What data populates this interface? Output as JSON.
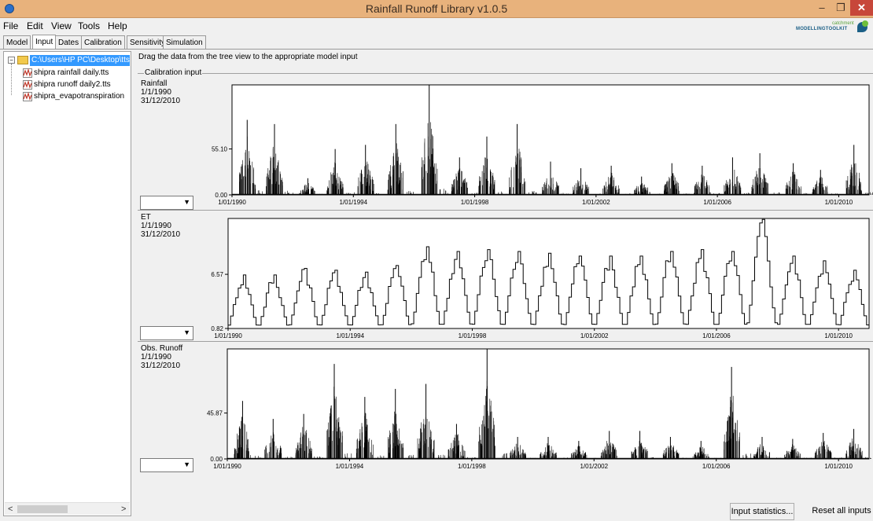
{
  "window": {
    "title": "Rainfall Runoff Library v1.0.5",
    "minimize": "–",
    "maximize": "❐",
    "close": "✕"
  },
  "menu": [
    "File",
    "Edit",
    "View",
    "Tools",
    "Help"
  ],
  "logo": {
    "main": "MODELLINGTOOLKIT",
    "sub": "catchment"
  },
  "tabs": [
    "Model",
    "Input",
    "Dates",
    "Calibration",
    "Sensitivity",
    "Simulation"
  ],
  "active_tab": "Input",
  "tree": {
    "root": "C:\\Users\\HP PC\\Desktop\\tts",
    "toggle": "−",
    "items": [
      "shipra rainfall daily.tts",
      "shipra runoff daily2.tts",
      "shipra_evapotranspiration"
    ]
  },
  "scroll": {
    "left": "<",
    "right": ">"
  },
  "instructions": "Drag the data from the tree view to the appropriate model input",
  "group_label": "Calibration input",
  "combo_caret": "▼",
  "panels": [
    {
      "name": "Rainfall",
      "start": "1/1/1990",
      "end": "31/12/2010",
      "y_mid": "55.10",
      "y_min": "0.00"
    },
    {
      "name": "ET",
      "start": "1/1/1990",
      "end": "31/12/2010",
      "y_mid": "6.57",
      "y_min": "0.82"
    },
    {
      "name": "Obs. Runoff",
      "start": "1/1/1990",
      "end": "31/12/2010",
      "y_mid": "45.87",
      "y_min": "0.00"
    }
  ],
  "chart_data": [
    {
      "type": "bar",
      "title": "Rainfall",
      "x_ticks": [
        "1/01/1990",
        "1/01/1994",
        "1/01/1998",
        "1/01/2002",
        "1/01/2006",
        "1/01/2010"
      ],
      "y_ticks": [
        0.0,
        55.1
      ],
      "ylim": [
        0,
        132
      ],
      "x_range": [
        1990.0,
        2011.0
      ],
      "peaks": [
        {
          "year": 1990.5,
          "value": 90
        },
        {
          "year": 1991.4,
          "value": 85
        },
        {
          "year": 1992.5,
          "value": 20
        },
        {
          "year": 1993.4,
          "value": 55
        },
        {
          "year": 1994.4,
          "value": 60
        },
        {
          "year": 1995.4,
          "value": 85
        },
        {
          "year": 1996.5,
          "value": 132
        },
        {
          "year": 1997.5,
          "value": 45
        },
        {
          "year": 1998.4,
          "value": 70
        },
        {
          "year": 1999.4,
          "value": 85
        },
        {
          "year": 2000.5,
          "value": 40
        },
        {
          "year": 2001.5,
          "value": 32
        },
        {
          "year": 2002.5,
          "value": 35
        },
        {
          "year": 2003.5,
          "value": 22
        },
        {
          "year": 2004.5,
          "value": 38
        },
        {
          "year": 2005.5,
          "value": 35
        },
        {
          "year": 2006.5,
          "value": 45
        },
        {
          "year": 2007.4,
          "value": 50
        },
        {
          "year": 2008.5,
          "value": 38
        },
        {
          "year": 2009.4,
          "value": 30
        },
        {
          "year": 2010.5,
          "value": 60
        }
      ]
    },
    {
      "type": "line",
      "title": "ET",
      "x_ticks": [
        "1/01/1990",
        "1/01/1994",
        "1/01/1998",
        "1/01/2002",
        "1/01/2006",
        "1/01/2010"
      ],
      "y_ticks": [
        0.82,
        6.57
      ],
      "ylim": [
        0.82,
        12.5
      ],
      "x_range": [
        1990.0,
        2011.0
      ],
      "annual_peak": [
        6.5,
        6.5,
        7.2,
        7.0,
        6.8,
        7.5,
        9.5,
        9.0,
        9.2,
        9.0,
        8.8,
        8.5,
        8.5,
        8.5,
        9.0,
        9.2,
        9.0,
        12.4,
        8.5,
        8.0,
        7.0
      ],
      "annual_low": 1.0
    },
    {
      "type": "bar",
      "title": "Obs. Runoff",
      "x_ticks": [
        "1/01/1990",
        "1/01/1994",
        "1/01/1998",
        "1/01/2002",
        "1/01/2006",
        "1/01/2010"
      ],
      "y_ticks": [
        0.0,
        45.87
      ],
      "ylim": [
        0,
        110
      ],
      "x_range": [
        1990.0,
        2011.0
      ],
      "peaks": [
        {
          "year": 1990.5,
          "value": 58
        },
        {
          "year": 1991.5,
          "value": 40
        },
        {
          "year": 1992.5,
          "value": 45
        },
        {
          "year": 1993.5,
          "value": 95
        },
        {
          "year": 1994.5,
          "value": 62
        },
        {
          "year": 1995.5,
          "value": 70
        },
        {
          "year": 1996.5,
          "value": 75
        },
        {
          "year": 1997.5,
          "value": 35
        },
        {
          "year": 1998.5,
          "value": 110
        },
        {
          "year": 1999.5,
          "value": 22
        },
        {
          "year": 2000.5,
          "value": 22
        },
        {
          "year": 2001.5,
          "value": 18
        },
        {
          "year": 2002.5,
          "value": 28
        },
        {
          "year": 2003.5,
          "value": 28
        },
        {
          "year": 2004.5,
          "value": 22
        },
        {
          "year": 2005.5,
          "value": 18
        },
        {
          "year": 2006.5,
          "value": 92
        },
        {
          "year": 2007.5,
          "value": 22
        },
        {
          "year": 2008.5,
          "value": 20
        },
        {
          "year": 2009.5,
          "value": 26
        },
        {
          "year": 2010.5,
          "value": 30
        }
      ]
    }
  ],
  "buttons": {
    "stats": "Input statistics...",
    "reset": "Reset all inputs"
  }
}
